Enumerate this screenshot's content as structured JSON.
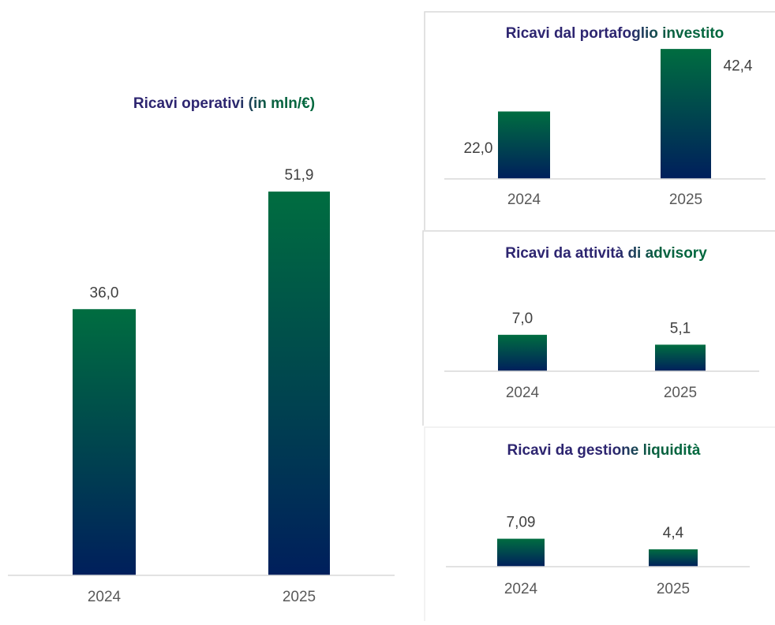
{
  "chart_data": [
    {
      "type": "bar",
      "title": "Ricavi operativi (in mln/€)",
      "categories": [
        "2024",
        "2025"
      ],
      "values": [
        36.0,
        51.9
      ],
      "value_labels": [
        "36,0",
        "51,9"
      ],
      "ylim": [
        0,
        55
      ]
    },
    {
      "type": "bar",
      "title": "Ricavi dal portafoglio investito",
      "categories": [
        "2024",
        "2025"
      ],
      "values": [
        22.0,
        42.4
      ],
      "value_labels": [
        "22,0",
        "42,4"
      ],
      "ylim": [
        0,
        45
      ]
    },
    {
      "type": "bar",
      "title": "Ricavi da attività di advisory",
      "categories": [
        "2024",
        "2025"
      ],
      "values": [
        7.0,
        5.1
      ],
      "value_labels": [
        "7,0",
        "5,1"
      ],
      "ylim": [
        0,
        10
      ]
    },
    {
      "type": "bar",
      "title": "Ricavi da gestione liquidità",
      "categories": [
        "2024",
        "2025"
      ],
      "values": [
        7.09,
        4.4
      ],
      "value_labels": [
        "7,09",
        "4,4"
      ],
      "ylim": [
        0,
        10
      ]
    }
  ]
}
